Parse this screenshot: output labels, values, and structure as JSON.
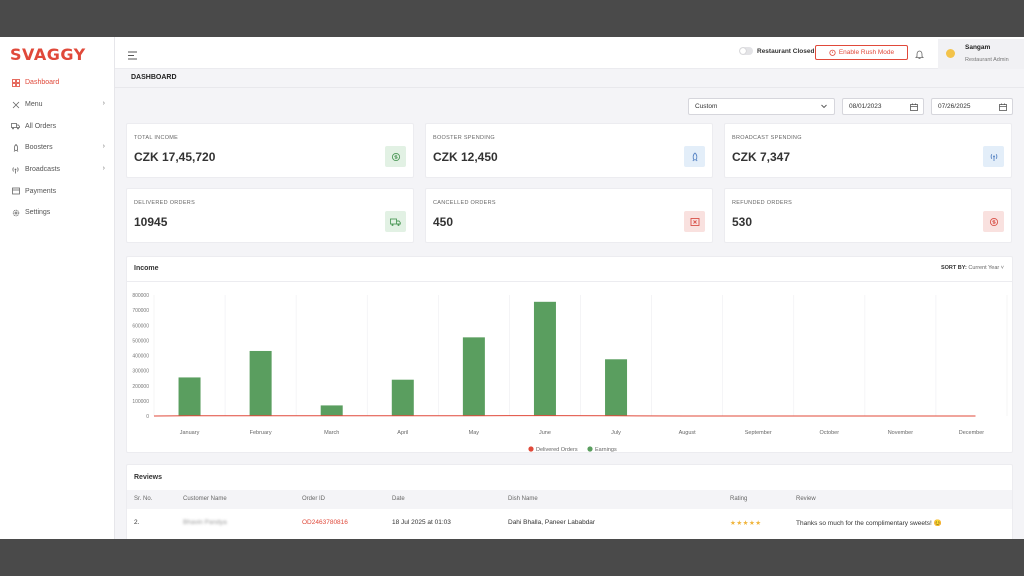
{
  "brand": {
    "logo": "SVAGGY",
    "accent": "#e0493a"
  },
  "sidebar": {
    "items": [
      {
        "label": "Dashboard",
        "icon": "grid-icon",
        "active": true
      },
      {
        "label": "Menu",
        "icon": "utensils-icon",
        "chevron": true
      },
      {
        "label": "All Orders",
        "icon": "truck-icon"
      },
      {
        "label": "Boosters",
        "icon": "rocket-icon",
        "chevron": true
      },
      {
        "label": "Broadcasts",
        "icon": "broadcast-icon",
        "chevron": true
      },
      {
        "label": "Payments",
        "icon": "payment-icon"
      },
      {
        "label": "Settings",
        "icon": "gear-icon"
      }
    ]
  },
  "topbar": {
    "toggle_label": "Restaurant Closed",
    "rush_button": "Enable Rush Mode",
    "user_name": "Sangam",
    "user_role": "Restaurant Admin"
  },
  "page": {
    "title": "DASHBOARD"
  },
  "filters": {
    "range": "Custom",
    "start_date": "08/01/2023",
    "end_date": "07/26/2025"
  },
  "stats": [
    {
      "label": "TOTAL INCOME",
      "value": "CZK 17,45,720",
      "icon": "money-icon",
      "tint": "#e2f1e4",
      "color": "#4f9a5a"
    },
    {
      "label": "BOOSTER SPENDING",
      "value": "CZK 12,450",
      "icon": "rocket-icon",
      "tint": "#e3eef9",
      "color": "#5a86c5"
    },
    {
      "label": "BROADCAST SPENDING",
      "value": "CZK 7,347",
      "icon": "broadcast-icon",
      "tint": "#e3eef9",
      "color": "#5a86c5"
    },
    {
      "label": "DELIVERED ORDERS",
      "value": "10945",
      "icon": "truck-icon",
      "tint": "#e2f1e4",
      "color": "#4f9a5a"
    },
    {
      "label": "CANCELLED ORDERS",
      "value": "450",
      "icon": "cancel-box-icon",
      "tint": "#f9e1df",
      "color": "#d9534a"
    },
    {
      "label": "REFUNDED ORDERS",
      "value": "530",
      "icon": "refund-icon",
      "tint": "#f9e1df",
      "color": "#d9534a"
    }
  ],
  "chart": {
    "title": "Income",
    "sort_label": "SORT BY:",
    "sort_value": "Current Year"
  },
  "chart_data": {
    "type": "bar",
    "title": "Income",
    "categories": [
      "January",
      "February",
      "March",
      "April",
      "May",
      "June",
      "July",
      "August",
      "September",
      "October",
      "November",
      "December"
    ],
    "series": [
      {
        "name": "Delivered Orders",
        "type": "line",
        "color": "#e0493a",
        "values": [
          2000,
          1500,
          1000,
          1500,
          2000,
          2500,
          1500,
          0,
          0,
          0,
          0,
          0
        ]
      },
      {
        "name": "Earnings",
        "type": "bar",
        "color": "#5a9e5f",
        "values": [
          255000,
          430000,
          70000,
          240000,
          520000,
          755000,
          375000,
          0,
          0,
          0,
          0,
          0
        ]
      }
    ],
    "yticks": [
      "0",
      "100000",
      "200000",
      "300000",
      "400000",
      "500000",
      "600000",
      "700000",
      "800000"
    ],
    "ylim": [
      0,
      800000
    ],
    "grid": true,
    "legend": "bottom-center"
  },
  "reviews": {
    "title": "Reviews",
    "columns": [
      "Sr. No.",
      "Customer Name",
      "Order ID",
      "Date",
      "Dish Name",
      "Rating",
      "Review"
    ],
    "rows": [
      {
        "sr": "2.",
        "customer": "Bhavin Pandya",
        "order_id": "OD2463780816",
        "date": "18 Jul 2025 at 01:03",
        "dish": "Dahi Bhalla, Paneer Lababdar",
        "rating": "★★★★★",
        "review": "Thanks so much for the complimentary sweets! 😊"
      }
    ]
  }
}
